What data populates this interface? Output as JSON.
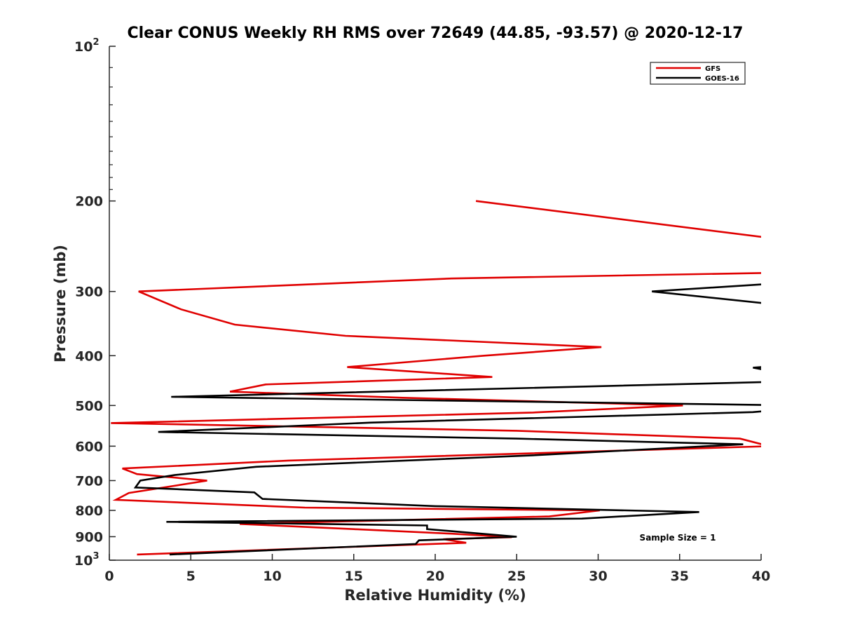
{
  "chart_data": {
    "type": "line",
    "title": "Clear CONUS Weekly RH RMS over 72649 (44.85, -93.57) @ 2020-12-17",
    "xlabel": "Relative Humidity (%)",
    "ylabel": "Pressure (mb)",
    "xlim": [
      0,
      40
    ],
    "ylim": [
      100,
      1000
    ],
    "y_scale": "log",
    "y_reversed": true,
    "grid": false,
    "legend_position": "top-right",
    "x_ticks": [
      "0",
      "5",
      "10",
      "15",
      "20",
      "25",
      "30",
      "35",
      "40"
    ],
    "y_ticks": [
      {
        "value": 100,
        "base": "10",
        "exp": "2"
      },
      {
        "value": 200,
        "base": "200",
        "exp": ""
      },
      {
        "value": 300,
        "base": "300",
        "exp": ""
      },
      {
        "value": 400,
        "base": "400",
        "exp": ""
      },
      {
        "value": 500,
        "base": "500",
        "exp": ""
      },
      {
        "value": 600,
        "base": "600",
        "exp": ""
      },
      {
        "value": 700,
        "base": "700",
        "exp": ""
      },
      {
        "value": 800,
        "base": "800",
        "exp": ""
      },
      {
        "value": 900,
        "base": "900",
        "exp": ""
      },
      {
        "value": 1000,
        "base": "10",
        "exp": "3"
      }
    ],
    "annotation": "Sample Size = 1",
    "series": [
      {
        "name": "GFS",
        "color": "#e00000",
        "points": [
          [
            22.5,
            200
          ],
          [
            40.5,
            236
          ],
          [
            40.5,
            276
          ],
          [
            21,
            283
          ],
          [
            1.8,
            300
          ],
          [
            4.4,
            325
          ],
          [
            7.7,
            348
          ],
          [
            14.5,
            366
          ],
          [
            30.2,
            385
          ],
          [
            23,
            400
          ],
          [
            14.6,
            421
          ],
          [
            23.5,
            440
          ],
          [
            9.6,
            455
          ],
          [
            7.4,
            470
          ],
          [
            18,
            483
          ],
          [
            35.2,
            500
          ],
          [
            26,
            516
          ],
          [
            0.1,
            541
          ],
          [
            25,
            560
          ],
          [
            38.7,
            580
          ],
          [
            40.5,
            600
          ],
          [
            11,
            640
          ],
          [
            0.8,
            663
          ],
          [
            1.7,
            680
          ],
          [
            6,
            700
          ],
          [
            1.2,
            740
          ],
          [
            0.4,
            763
          ],
          [
            12,
            790
          ],
          [
            30.1,
            800
          ],
          [
            27,
            822
          ],
          [
            8,
            850
          ],
          [
            15,
            870
          ],
          [
            21,
            888
          ],
          [
            24.7,
            902
          ],
          [
            20.5,
            910
          ],
          [
            21.9,
            925
          ],
          [
            1.7,
            975
          ]
        ]
      },
      {
        "name": "GOES-16",
        "color": "#000000",
        "points": [
          [
            40.5,
            290
          ],
          [
            33.3,
            300
          ],
          [
            40.5,
            317
          ],
          [
            40.5,
            420
          ],
          [
            39.5,
            422
          ],
          [
            40.5,
            428
          ],
          [
            40.5,
            450
          ],
          [
            3.8,
            481
          ],
          [
            40.5,
            499
          ],
          [
            40.5,
            512
          ],
          [
            39.5,
            515
          ],
          [
            16,
            540
          ],
          [
            3,
            563
          ],
          [
            25,
            580
          ],
          [
            38.9,
            595
          ],
          [
            26,
            625
          ],
          [
            9,
            658
          ],
          [
            4,
            683
          ],
          [
            1.9,
            700
          ],
          [
            1.6,
            722
          ],
          [
            8.9,
            738
          ],
          [
            9.4,
            760
          ],
          [
            20,
            785
          ],
          [
            36.2,
            806
          ],
          [
            29,
            830
          ],
          [
            3.5,
            842
          ],
          [
            19.5,
            856
          ],
          [
            19.5,
            870
          ],
          [
            25,
            900
          ],
          [
            19,
            915
          ],
          [
            18.8,
            930
          ],
          [
            3.7,
            975
          ]
        ]
      }
    ]
  }
}
